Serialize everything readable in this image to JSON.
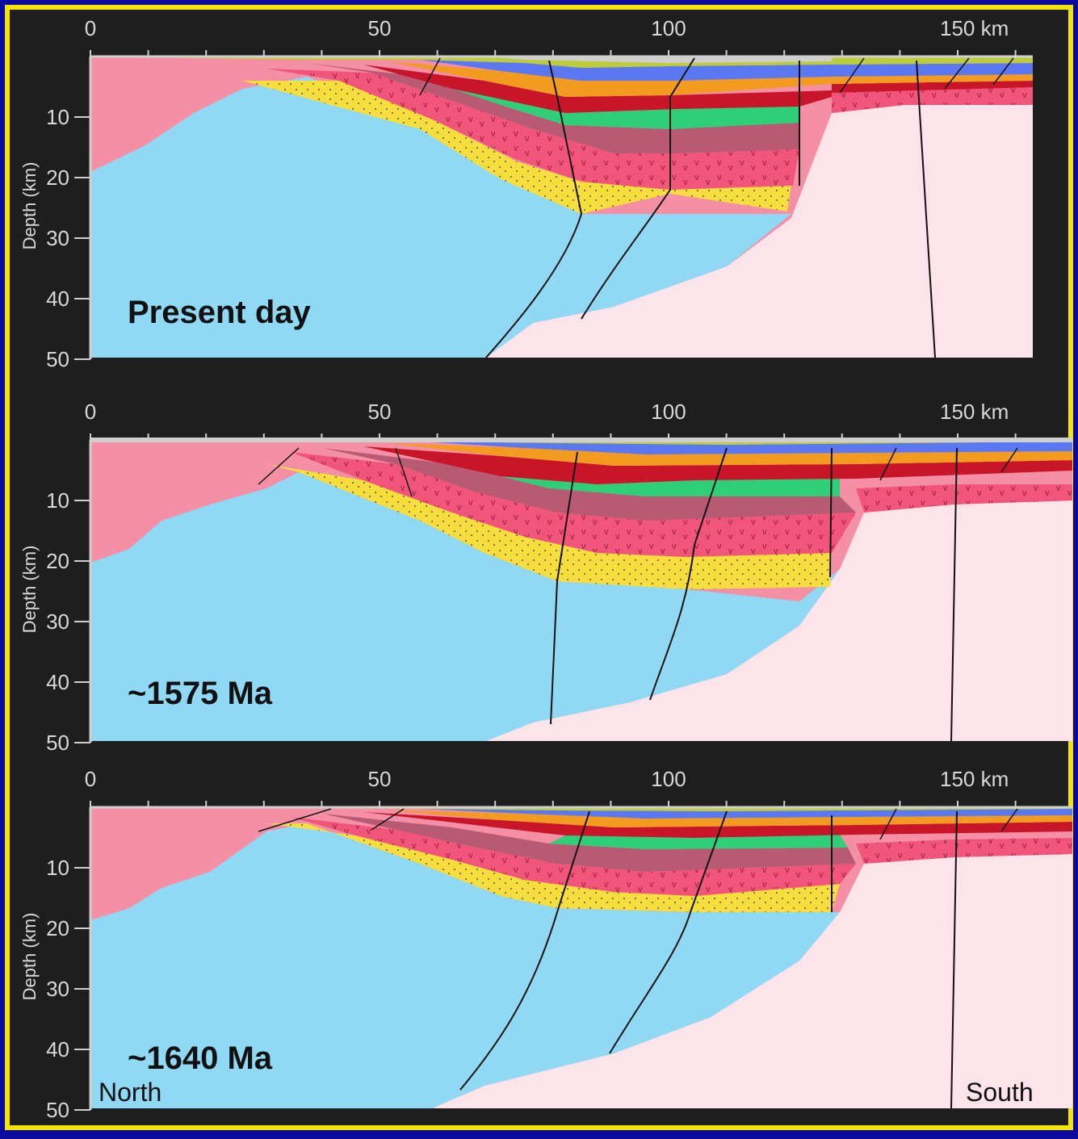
{
  "colors": {
    "border": "#0a0a9e",
    "frame": "#f2e600",
    "background": "#1e1e1e",
    "north_block": "#f58fa6",
    "basement_blue": "#8fd9f5",
    "south_block": "#fde3ea",
    "axis_text": "#d8d8d8"
  },
  "axis": {
    "x_ticks": [
      "0",
      "50",
      "100",
      "150 km"
    ],
    "y_ticks": [
      "10",
      "20",
      "30",
      "40",
      "50"
    ],
    "y_label": "Depth (km)"
  },
  "panels": [
    {
      "label": "Present day"
    },
    {
      "label": "~1575 Ma"
    },
    {
      "label": "~1640 Ma"
    }
  ],
  "directions": {
    "north": "North",
    "south": "South"
  }
}
